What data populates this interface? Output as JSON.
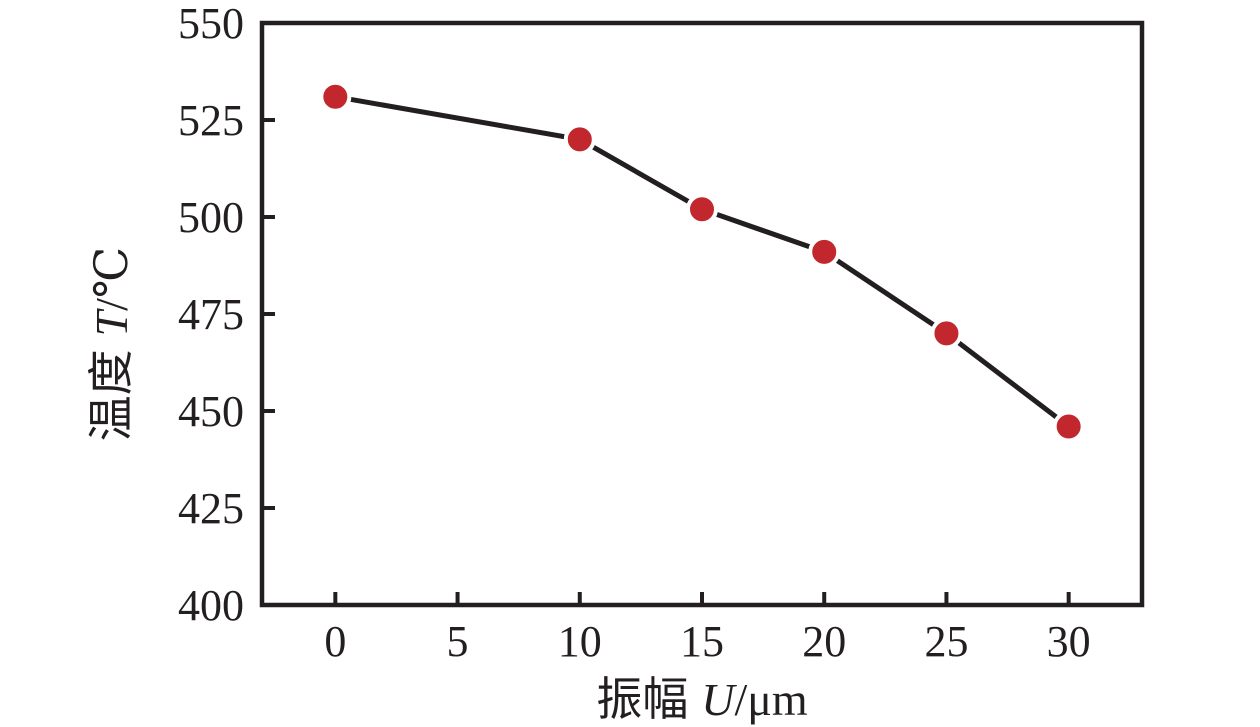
{
  "figure": {
    "background_color": "#ffffff",
    "axis_color": "#231f20",
    "line_color": "#231f20",
    "marker_color": "#c1272d"
  },
  "chart_data": {
    "type": "line",
    "title": "",
    "xlabel_cjk": "振幅",
    "xlabel_symbol": "U",
    "xlabel_unit": "/μm",
    "ylabel_cjk": "温度",
    "ylabel_symbol": "T",
    "ylabel_unit": "/℃",
    "x": [
      0,
      10,
      15,
      20,
      25,
      30
    ],
    "y": [
      531,
      520,
      502,
      491,
      470,
      446
    ],
    "x_ticks": [
      0,
      5,
      10,
      15,
      20,
      25,
      30
    ],
    "y_ticks": [
      400,
      425,
      450,
      475,
      500,
      525,
      550
    ],
    "xlim": [
      -3,
      33
    ],
    "ylim": [
      400,
      550
    ],
    "grid": false,
    "legend": false,
    "marker": "circle"
  }
}
